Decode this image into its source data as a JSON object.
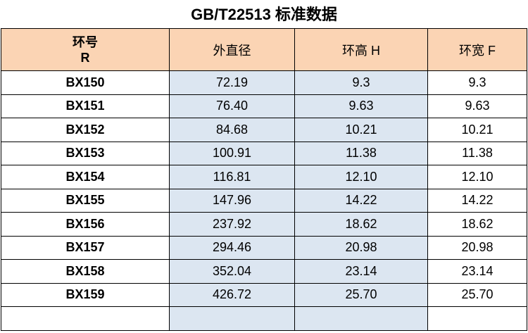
{
  "title": "GB/T22513 标准数据",
  "table": {
    "header": [
      [
        "环号",
        "R"
      ],
      "外直径",
      "环高 H",
      "环宽 F"
    ],
    "rows": [
      [
        "BX150",
        "72.19",
        "9.3",
        "9.3"
      ],
      [
        "BX151",
        "76.40",
        "9.63",
        "9.63"
      ],
      [
        "BX152",
        "84.68",
        "10.21",
        "10.21"
      ],
      [
        "BX153",
        "100.91",
        "11.38",
        "11.38"
      ],
      [
        "BX154",
        "116.81",
        "12.10",
        "12.10"
      ],
      [
        "BX155",
        "147.96",
        "14.22",
        "14.22"
      ],
      [
        "BX156",
        "237.92",
        "18.62",
        "18.62"
      ],
      [
        "BX157",
        "294.46",
        "20.98",
        "20.98"
      ],
      [
        "BX158",
        "352.04",
        "23.14",
        "23.14"
      ],
      [
        "BX159",
        "426.72",
        "25.70",
        "25.70"
      ]
    ]
  }
}
